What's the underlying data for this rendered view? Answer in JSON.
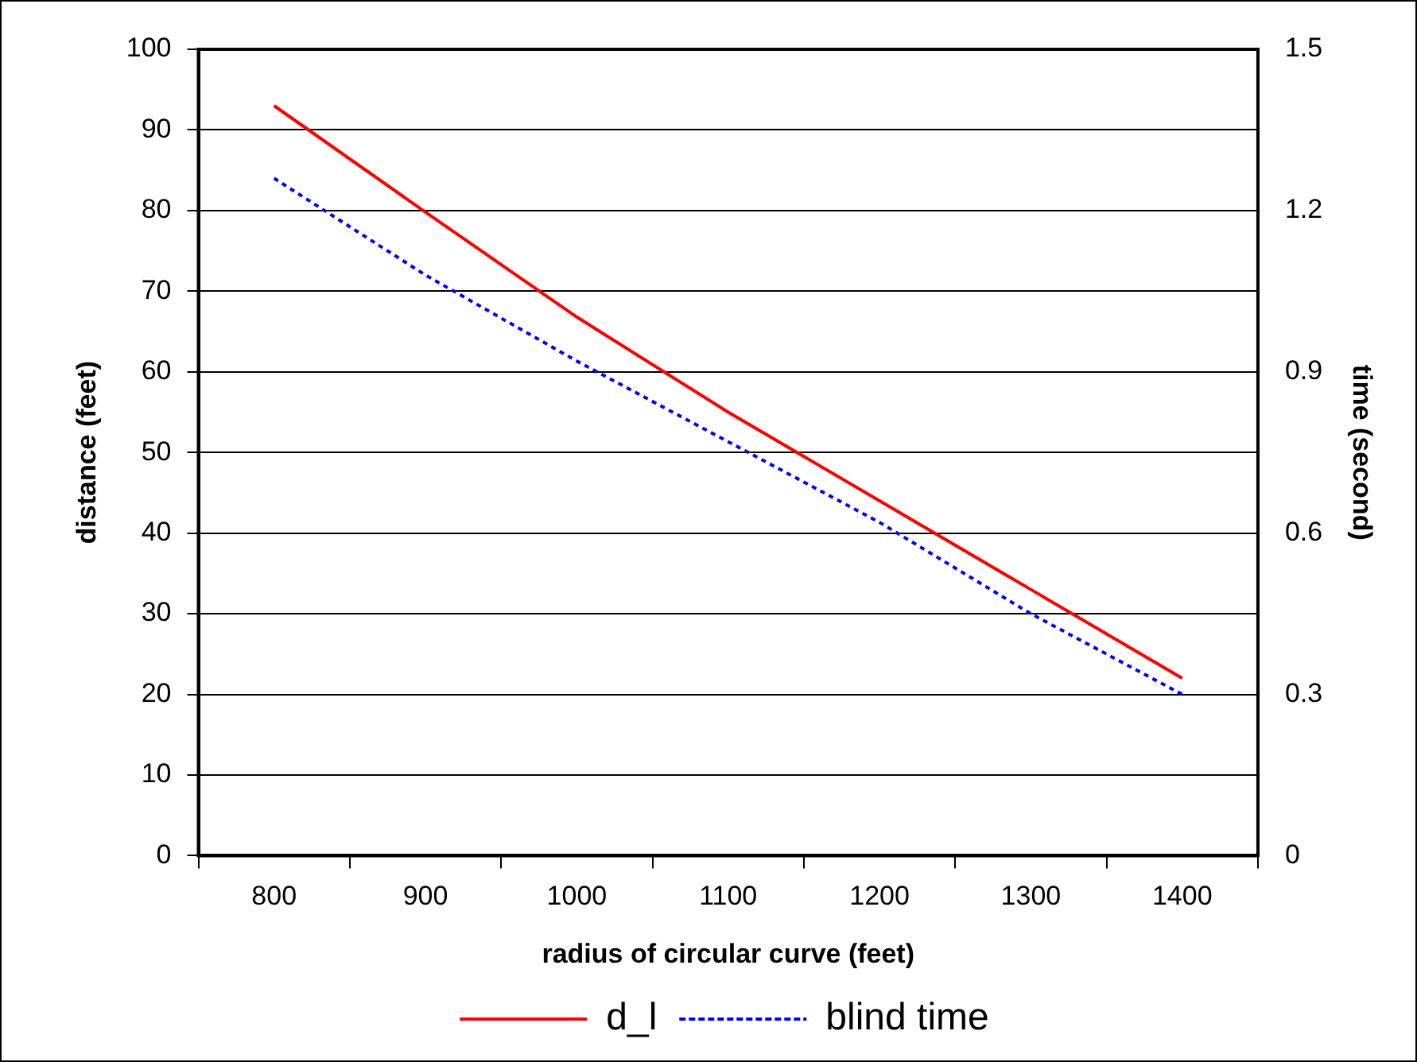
{
  "chart_data": {
    "type": "line",
    "xlabel": "radius of circular curve (feet)",
    "ylabel": "distance (feet)",
    "y2label": "time (second)",
    "categories": [
      "800",
      "900",
      "1000",
      "1100",
      "1200",
      "1300",
      "1400"
    ],
    "series": [
      {
        "name": "d_l",
        "color": "#ff0000",
        "values": [
          93,
          79.8,
          66.8,
          55,
          44,
          33,
          22
        ],
        "line_style": "solid"
      },
      {
        "name": "blind time",
        "color": "#0000ff",
        "values": [
          1.26,
          1.08,
          0.92,
          0.77,
          0.62,
          0.45,
          0.3
        ],
        "axis": "y2",
        "line_style": "dotted"
      }
    ],
    "ylim": [
      0,
      100
    ],
    "yticks": [
      0,
      10,
      20,
      30,
      40,
      50,
      60,
      70,
      80,
      90,
      100
    ],
    "y2lim": [
      0,
      1.5
    ],
    "y2ticks": [
      0,
      {
        "value": 0.3,
        "label": "0.3"
      },
      {
        "value": 0.6,
        "label": "0.6"
      },
      {
        "value": 0.9,
        "label": "0.9"
      },
      {
        "value": 1.2,
        "label": "1.2"
      },
      {
        "value": 1.5,
        "label": "1.5"
      }
    ],
    "grid": "y",
    "legend": "bottom",
    "marker": "none"
  }
}
